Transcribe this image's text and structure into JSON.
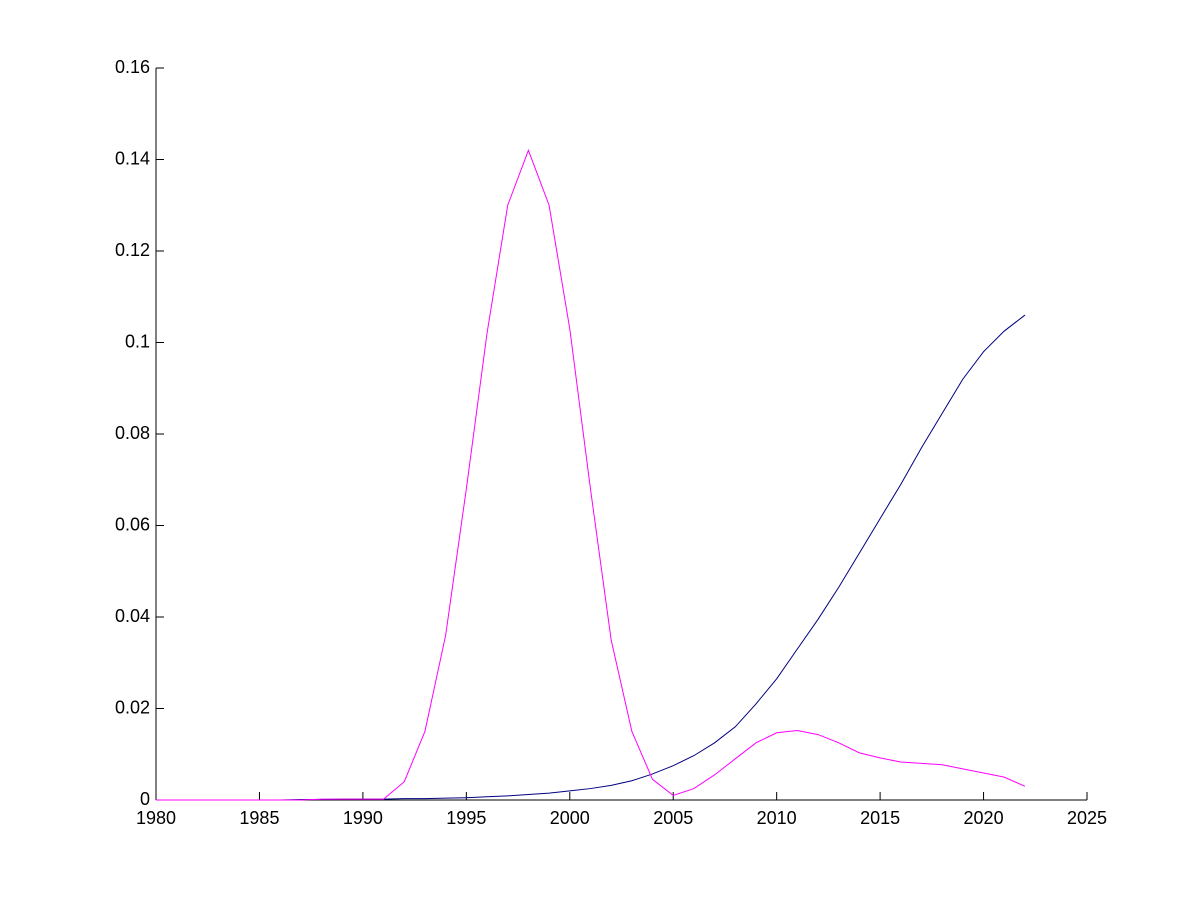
{
  "chart_data": {
    "type": "line",
    "x": [
      1980,
      1981,
      1982,
      1983,
      1984,
      1985,
      1986,
      1987,
      1988,
      1989,
      1990,
      1991,
      1992,
      1993,
      1994,
      1995,
      1996,
      1997,
      1998,
      1999,
      2000,
      2001,
      2002,
      2003,
      2004,
      2005,
      2006,
      2007,
      2008,
      2009,
      2010,
      2011,
      2012,
      2013,
      2014,
      2015,
      2016,
      2017,
      2018,
      2019,
      2020,
      2021,
      2022
    ],
    "series": [
      {
        "color": "#000080",
        "values": [
          0,
          0,
          0,
          0,
          0,
          0,
          0,
          0.0001,
          0.0001,
          0.0002,
          0.0002,
          0.0002,
          0.0003,
          0.0003,
          0.0004,
          0.0005,
          0.0007,
          0.0009,
          0.0012,
          0.0015,
          0.002,
          0.0025,
          0.0032,
          0.0042,
          0.0057,
          0.0075,
          0.0097,
          0.0125,
          0.016,
          0.021,
          0.0265,
          0.033,
          0.0395,
          0.0465,
          0.054,
          0.0615,
          0.069,
          0.077,
          0.0845,
          0.092,
          0.098,
          0.1025,
          0.106
        ]
      },
      {
        "color": "#ff00ff",
        "values": [
          0,
          0,
          0,
          0,
          0,
          0,
          0,
          0,
          0.0002,
          0.0002,
          0.0002,
          0.0002,
          0.004,
          0.015,
          0.036,
          0.068,
          0.102,
          0.13,
          0.142,
          0.13,
          0.103,
          0.068,
          0.035,
          0.015,
          0.0045,
          0.001,
          0.0025,
          0.0055,
          0.009,
          0.0125,
          0.0147,
          0.0152,
          0.0143,
          0.0125,
          0.0103,
          0.0092,
          0.0083,
          0.008,
          0.0077,
          0.0068,
          0.0059,
          0.005,
          0.003
        ]
      }
    ],
    "xlim": [
      1980,
      2025
    ],
    "xticks": [
      1980,
      1985,
      1990,
      1995,
      2000,
      2005,
      2010,
      2015,
      2020,
      2025
    ],
    "ylim": [
      0,
      0.16
    ],
    "yticks": [
      0,
      0.02,
      0.04,
      0.06,
      0.08,
      0.1,
      0.12,
      0.14,
      0.16
    ]
  }
}
